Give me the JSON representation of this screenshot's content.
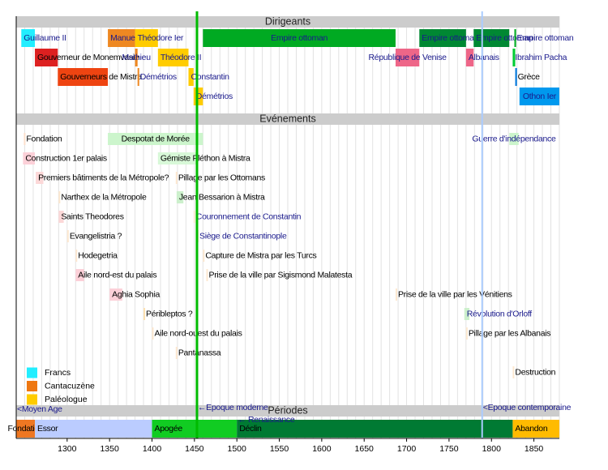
{
  "chart_data": {
    "type": "timeline",
    "xlim": [
      1240,
      1880
    ],
    "xticks": [
      1300,
      1350,
      1400,
      1450,
      1500,
      1550,
      1600,
      1650,
      1700,
      1750,
      1800,
      1850
    ],
    "grid": true,
    "grid_step": 10,
    "sections": [
      {
        "title": "Dirigeants",
        "items": [
          {
            "label": "Guillaume II",
            "start": 1246,
            "end": 1262,
            "color": "#22eeff",
            "text_color": "#1a1a8c"
          },
          {
            "label": "Gouverneur de Monemvasie",
            "start": 1262,
            "end": 1289,
            "color": "#dd2020",
            "text_color": "#000000"
          },
          {
            "label": "Gouverneurs de Mistra",
            "start": 1289,
            "end": 1348,
            "color": "#ee4411",
            "text_color": "#000000"
          },
          {
            "label": "Manuel",
            "start": 1348,
            "end": 1380,
            "color": "#ee8822",
            "text_color": "#1a1a8c"
          },
          {
            "label": "Mathieu",
            "start": 1380,
            "end": 1383,
            "color": "#ee8822",
            "text_color": "#1a1a8c"
          },
          {
            "label": "Démétrios",
            "start": 1383,
            "end": 1384,
            "color": "#ee8822",
            "text_color": "#1a1a8c"
          },
          {
            "label": "Théodore Ier",
            "start": 1380,
            "end": 1407,
            "color": "#ffcc00",
            "text_color": "#1a1a8c"
          },
          {
            "label": "Théodore II",
            "start": 1407,
            "end": 1443,
            "color": "#ffcc00",
            "text_color": "#1a1a8c"
          },
          {
            "label": "Constantin",
            "start": 1443,
            "end": 1449,
            "color": "#ffcc00",
            "text_color": "#1a1a8c"
          },
          {
            "label": "Démétrios",
            "start": 1449,
            "end": 1460,
            "color": "#ffcc00",
            "text_color": "#1a1a8c"
          },
          {
            "label": "Empire ottoman",
            "start": 1460,
            "end": 1687,
            "color": "#00aa22",
            "text_color": "#1a1a8c"
          },
          {
            "label": "République de Venise",
            "start": 1687,
            "end": 1715,
            "color": "#ee6688",
            "text_color": "#1a1a8c"
          },
          {
            "label": "Empire ottoman",
            "start": 1715,
            "end": 1770,
            "color": "#008833",
            "text_color": "#1a1a8c"
          },
          {
            "label": "Albanais",
            "start": 1770,
            "end": 1779,
            "color": "#ee6688",
            "text_color": "#1a1a8c"
          },
          {
            "label": "Empire ottoman",
            "start": 1779,
            "end": 1821,
            "color": "#008833",
            "text_color": "#1a1a8c"
          },
          {
            "label": "Empire ottoman",
            "start": 1827,
            "end": 1829,
            "color": "#00aa22",
            "text_color": "#1a1a8c"
          },
          {
            "label": "Ibrahim Pacha",
            "start": 1825,
            "end": 1828,
            "color": "#00cc33",
            "text_color": "#1a1a8c"
          },
          {
            "label": "Grèce",
            "start": 1828,
            "end": 1830,
            "color": "#0077dd",
            "text_color": "#000000"
          },
          {
            "label": "Othon Ier",
            "start": 1833,
            "end": 1880,
            "color": "#0099ee",
            "text_color": "#1a1a8c"
          }
        ]
      },
      {
        "title": "Evénements",
        "items": [
          {
            "label": "Fondation",
            "start": 1249,
            "end": 1250,
            "color": "#fde0cc",
            "text_color": "#000000"
          },
          {
            "label": "Despotat de Morée",
            "start": 1348,
            "end": 1460,
            "color": "#ccf5cc",
            "text_color": "#000000"
          },
          {
            "label": "Guerre d'indépendance",
            "start": 1821,
            "end": 1832,
            "color": "#ccf5cc",
            "text_color": "#1a1a8c"
          },
          {
            "label": "Construction 1er palais",
            "start": 1248,
            "end": 1262,
            "color": "#fcd0d8",
            "text_color": "#000000"
          },
          {
            "label": "Gémiste Pléthon à Mistra",
            "start": 1407,
            "end": 1452,
            "color": "#d8f8d8",
            "text_color": "#000000"
          },
          {
            "label": "Premiers bâtiments de la Métropole?",
            "start": 1263,
            "end": 1272,
            "color": "#fcd8d8",
            "text_color": "#000000"
          },
          {
            "label": "Pillage par les Ottomans",
            "start": 1428,
            "end": 1429,
            "color": "#fde8d0",
            "text_color": "#000000"
          },
          {
            "label": "Narthex de la Métropole",
            "start": 1290,
            "end": 1291,
            "color": "#fde8d0",
            "text_color": "#000000"
          },
          {
            "label": "Jean Bessarion à Mistra",
            "start": 1429,
            "end": 1437,
            "color": "#ccf0cc",
            "text_color": "#000000"
          },
          {
            "label": "Saints Theodores",
            "start": 1290,
            "end": 1296,
            "color": "#fcd8d8",
            "text_color": "#000000"
          },
          {
            "label": "Couronnement de Constantin",
            "start": 1449,
            "end": 1450,
            "color": "#fde8d0",
            "text_color": "#1a1a8c"
          },
          {
            "label": "Evangelistria ?",
            "start": 1300,
            "end": 1301,
            "color": "#fde8d0",
            "text_color": "#000000"
          },
          {
            "label": "Siège de Constantinople",
            "start": 1453,
            "end": 1454,
            "color": "#fde8d0",
            "text_color": "#1a1a8c"
          },
          {
            "label": "Hodegetria",
            "start": 1310,
            "end": 1311,
            "color": "#fde8d0",
            "text_color": "#000000"
          },
          {
            "label": "Capture de Mistra par les Turcs",
            "start": 1460,
            "end": 1461,
            "color": "#fde8d0",
            "text_color": "#000000"
          },
          {
            "label": "Aile nord-est du palais",
            "start": 1310,
            "end": 1320,
            "color": "#fcd0d8",
            "text_color": "#000000"
          },
          {
            "label": "Prise de la ville par Sigismond Malatesta",
            "start": 1464,
            "end": 1465,
            "color": "#fde8d0",
            "text_color": "#000000"
          },
          {
            "label": "Aghia Sophia",
            "start": 1350,
            "end": 1365,
            "color": "#fcd0d8",
            "text_color": "#000000"
          },
          {
            "label": "Prise de la ville par les Vénitiens",
            "start": 1687,
            "end": 1688,
            "color": "#fde8d0",
            "text_color": "#000000"
          },
          {
            "label": "Péribleptos ?",
            "start": 1390,
            "end": 1391,
            "color": "#fde0b0",
            "text_color": "#000000"
          },
          {
            "label": "Révolution d'Orloff",
            "start": 1768,
            "end": 1774,
            "color": "#ccf0cc",
            "text_color": "#1a1a8c"
          },
          {
            "label": "Aile nord-ouest du palais",
            "start": 1400,
            "end": 1401,
            "color": "#fde8d0",
            "text_color": "#000000"
          },
          {
            "label": "Pillage par les Albanais",
            "start": 1770,
            "end": 1771,
            "color": "#fde8d0",
            "text_color": "#000000"
          },
          {
            "label": "Pantanassa",
            "start": 1428,
            "end": 1429,
            "color": "#fde8d0",
            "text_color": "#000000"
          },
          {
            "label": "Destruction",
            "start": 1825,
            "end": 1826,
            "color": "#fde8d0",
            "text_color": "#000000"
          }
        ]
      },
      {
        "title": "Périodes",
        "items": [
          {
            "label": "Fondation",
            "start": 1240,
            "end": 1262,
            "color": "#ee7722",
            "text_color": "#000000"
          },
          {
            "label": "Essor",
            "start": 1262,
            "end": 1400,
            "color": "#bbccff",
            "text_color": "#000000"
          },
          {
            "label": "Apogée",
            "start": 1400,
            "end": 1500,
            "color": "#11cc22",
            "text_color": "#000000"
          },
          {
            "label": "Déclin",
            "start": 1500,
            "end": 1825,
            "color": "#007a33",
            "text_color": "#000000"
          },
          {
            "label": "Abandon",
            "start": 1825,
            "end": 1880,
            "color": "#ffbb00",
            "text_color": "#000000"
          }
        ]
      }
    ],
    "legend": [
      {
        "name": "Francs",
        "color": "#22eeff"
      },
      {
        "name": "Cantacuzène",
        "color": "#ee7711"
      },
      {
        "name": "Paléologue",
        "color": "#ffcc00"
      }
    ],
    "markers": [
      {
        "label": "<Moyen Age",
        "x": 1240
      },
      {
        "label": "←Epoque moderne",
        "x": 1453,
        "color": "#00bb00"
      },
      {
        "label": "← Renaissance",
        "x": 1500
      },
      {
        "label": "<Epoque contemporaine",
        "x": 1789,
        "color": "#aaccff"
      }
    ]
  }
}
